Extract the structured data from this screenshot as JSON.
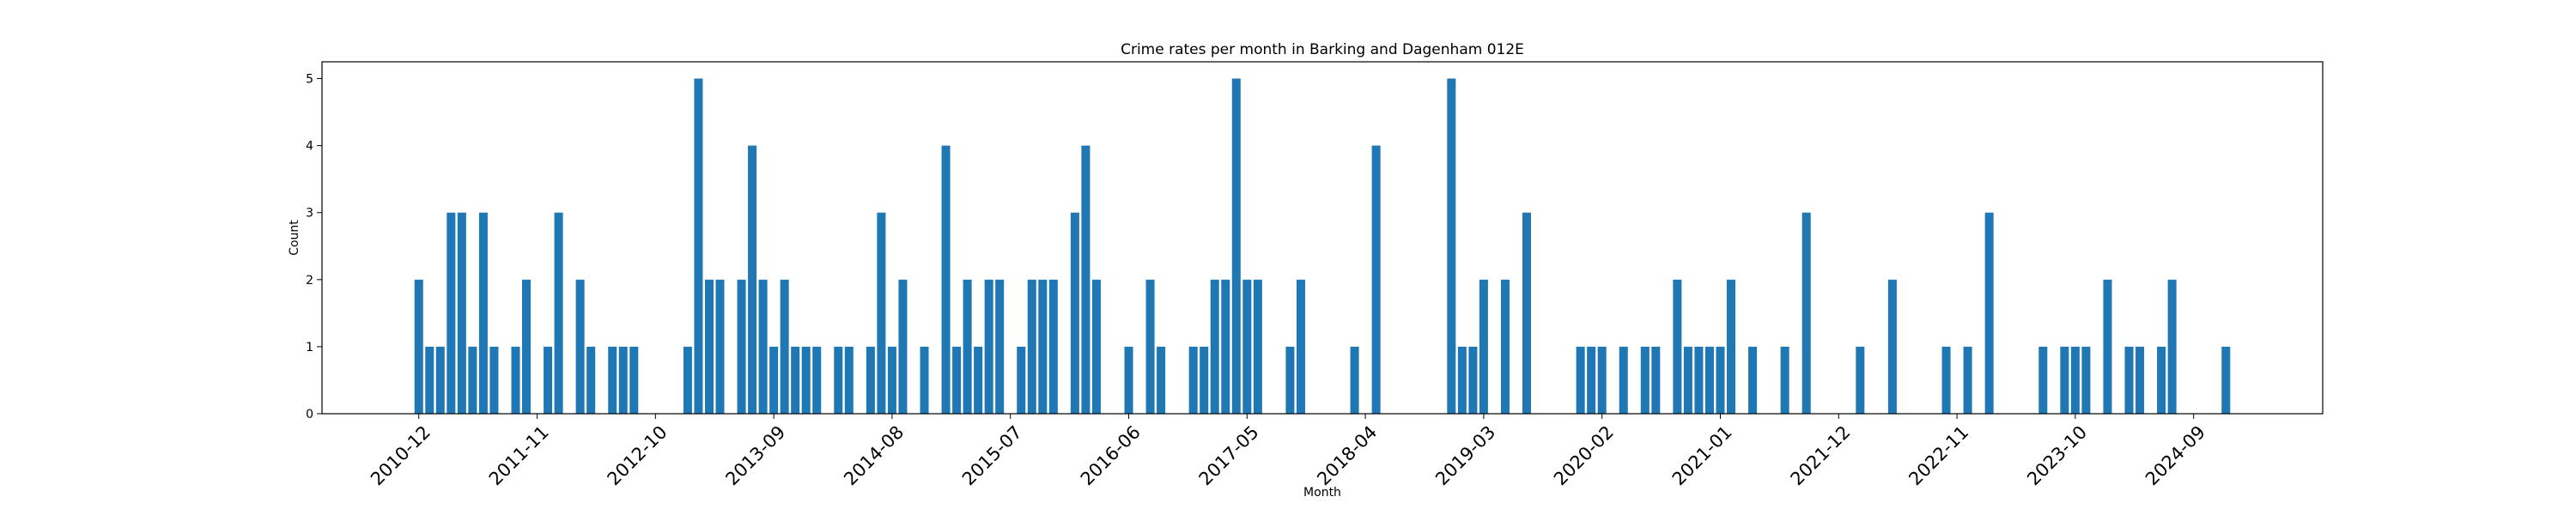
{
  "chart_data": {
    "type": "bar",
    "title": "Crime rates per month in Barking and Dagenham 012E",
    "xlabel": "Month",
    "ylabel": "Count",
    "ylim": [
      0,
      5.25
    ],
    "y_ticks": [
      0,
      1,
      2,
      3,
      4,
      5
    ],
    "x_tick_labels": [
      "2010-12",
      "2011-11",
      "2012-10",
      "2013-09",
      "2014-08",
      "2015-07",
      "2016-06",
      "2017-05",
      "2018-04",
      "2019-03",
      "2020-02",
      "2021-01",
      "2021-12",
      "2022-11",
      "2023-10",
      "2024-09"
    ],
    "series": [
      {
        "color": "#1f77b4",
        "x": [
          "2010-12",
          "2011-01",
          "2011-02",
          "2011-03",
          "2011-04",
          "2011-05",
          "2011-06",
          "2011-07",
          "2011-09",
          "2011-10",
          "2011-12",
          "2012-01",
          "2012-03",
          "2012-04",
          "2012-06",
          "2012-07",
          "2012-08",
          "2013-01",
          "2013-02",
          "2013-03",
          "2013-04",
          "2013-06",
          "2013-07",
          "2013-08",
          "2013-09",
          "2013-10",
          "2013-11",
          "2013-12",
          "2014-01",
          "2014-03",
          "2014-04",
          "2014-06",
          "2014-07",
          "2014-08",
          "2014-09",
          "2014-11",
          "2015-01",
          "2015-02",
          "2015-03",
          "2015-04",
          "2015-05",
          "2015-06",
          "2015-08",
          "2015-09",
          "2015-10",
          "2015-11",
          "2016-01",
          "2016-02",
          "2016-03",
          "2016-06",
          "2016-08",
          "2016-09",
          "2016-12",
          "2017-01",
          "2017-02",
          "2017-03",
          "2017-04",
          "2017-05",
          "2017-06",
          "2017-09",
          "2017-10",
          "2018-03",
          "2018-05",
          "2018-12",
          "2019-01",
          "2019-02",
          "2019-03",
          "2019-05",
          "2019-07",
          "2019-12",
          "2020-01",
          "2020-02",
          "2020-04",
          "2020-06",
          "2020-07",
          "2020-09",
          "2020-10",
          "2020-11",
          "2020-12",
          "2021-01",
          "2021-02",
          "2021-04",
          "2021-07",
          "2021-09",
          "2022-02",
          "2022-05",
          "2022-10",
          "2022-12",
          "2023-02",
          "2023-07",
          "2023-09",
          "2023-10",
          "2023-11",
          "2024-01",
          "2024-03",
          "2024-04",
          "2024-06",
          "2024-07",
          "2024-12"
        ],
        "values": [
          2,
          1,
          1,
          3,
          3,
          1,
          3,
          1,
          1,
          2,
          1,
          3,
          2,
          1,
          1,
          1,
          1,
          1,
          5,
          2,
          2,
          2,
          4,
          2,
          1,
          2,
          1,
          1,
          1,
          1,
          1,
          1,
          3,
          1,
          2,
          1,
          4,
          1,
          2,
          1,
          2,
          2,
          1,
          2,
          2,
          2,
          3,
          4,
          2,
          1,
          2,
          1,
          1,
          1,
          2,
          2,
          5,
          2,
          2,
          1,
          2,
          1,
          4,
          5,
          1,
          1,
          2,
          2,
          3,
          1,
          1,
          1,
          1,
          1,
          1,
          2,
          1,
          1,
          1,
          1,
          2,
          1,
          1,
          3,
          1,
          2,
          1,
          1,
          3,
          1,
          1,
          1,
          1,
          2,
          1,
          1,
          1,
          2,
          1
        ]
      }
    ]
  }
}
